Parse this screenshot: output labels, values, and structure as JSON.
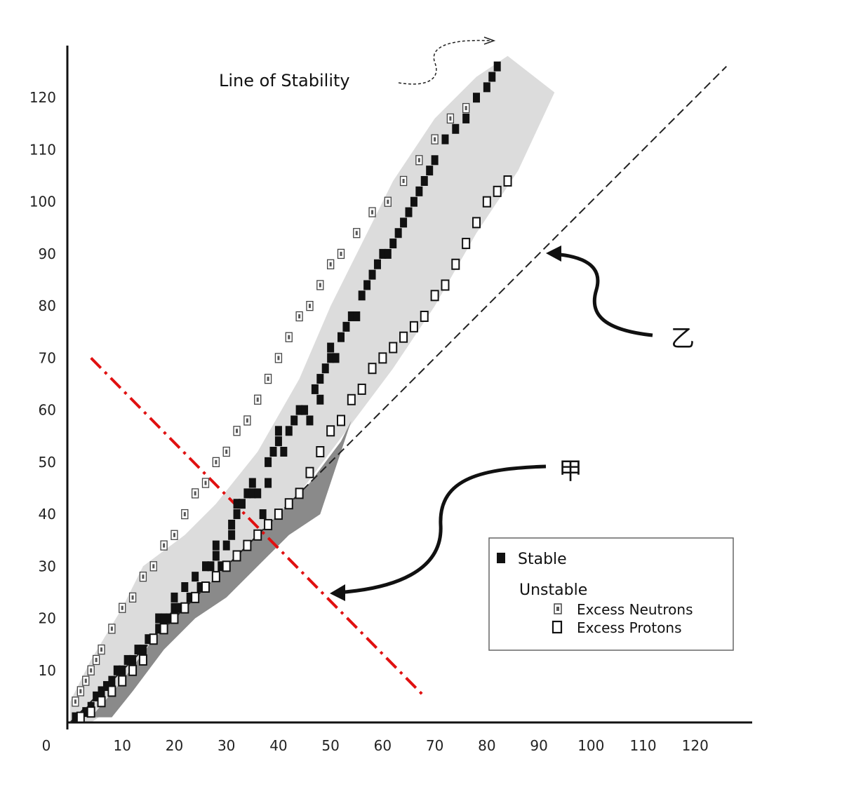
{
  "chart_data": {
    "type": "scatter",
    "title": "",
    "xlabel": "",
    "ylabel": "",
    "xlim": [
      0,
      130
    ],
    "ylim": [
      0,
      130
    ],
    "x_ticks": [
      0,
      10,
      20,
      30,
      40,
      50,
      60,
      70,
      80,
      90,
      100,
      110,
      120
    ],
    "y_ticks": [
      10,
      20,
      30,
      40,
      50,
      60,
      70,
      80,
      90,
      100,
      110,
      120
    ],
    "stability_label": "Line of Stability",
    "annotation_jia": "甲",
    "annotation_yi": "乙",
    "legend": {
      "stable": "Stable",
      "unstable": "Unstable",
      "excess_neutrons": "Excess Neutrons",
      "excess_protons": "Excess Protons"
    },
    "colors": {
      "light_band": "#dcdcdc",
      "dark_band": "#8a8a8a",
      "stable": "#111111",
      "red_line": "#e01010",
      "equal_line": "#222222"
    },
    "equal_line": [
      [
        0,
        0
      ],
      [
        126,
        126
      ]
    ],
    "red_line": [
      [
        4,
        70
      ],
      [
        68,
        5
      ]
    ],
    "series": [
      {
        "name": "Stable",
        "points": [
          [
            1,
            1
          ],
          [
            2,
            1
          ],
          [
            3,
            2
          ],
          [
            4,
            3
          ],
          [
            5,
            5
          ],
          [
            6,
            6
          ],
          [
            7,
            7
          ],
          [
            8,
            8
          ],
          [
            9,
            10
          ],
          [
            10,
            10
          ],
          [
            11,
            12
          ],
          [
            12,
            12
          ],
          [
            13,
            14
          ],
          [
            14,
            14
          ],
          [
            15,
            16
          ],
          [
            16,
            16
          ],
          [
            17,
            18
          ],
          [
            17,
            20
          ],
          [
            18,
            20
          ],
          [
            19,
            20
          ],
          [
            20,
            22
          ],
          [
            20,
            24
          ],
          [
            21,
            22
          ],
          [
            22,
            26
          ],
          [
            23,
            24
          ],
          [
            24,
            28
          ],
          [
            25,
            26
          ],
          [
            26,
            30
          ],
          [
            27,
            30
          ],
          [
            28,
            32
          ],
          [
            28,
            34
          ],
          [
            29,
            30
          ],
          [
            30,
            34
          ],
          [
            31,
            36
          ],
          [
            31,
            38
          ],
          [
            32,
            40
          ],
          [
            32,
            42
          ],
          [
            33,
            42
          ],
          [
            34,
            44
          ],
          [
            35,
            46
          ],
          [
            35,
            44
          ],
          [
            36,
            44
          ],
          [
            37,
            40
          ],
          [
            38,
            50
          ],
          [
            38,
            46
          ],
          [
            39,
            52
          ],
          [
            40,
            54
          ],
          [
            40,
            56
          ],
          [
            41,
            52
          ],
          [
            42,
            56
          ],
          [
            43,
            58
          ],
          [
            44,
            60
          ],
          [
            45,
            60
          ],
          [
            46,
            58
          ],
          [
            47,
            64
          ],
          [
            48,
            62
          ],
          [
            48,
            66
          ],
          [
            49,
            68
          ],
          [
            50,
            70
          ],
          [
            50,
            72
          ],
          [
            51,
            70
          ],
          [
            52,
            74
          ],
          [
            53,
            76
          ],
          [
            54,
            78
          ],
          [
            55,
            78
          ],
          [
            56,
            82
          ],
          [
            57,
            84
          ],
          [
            58,
            86
          ],
          [
            59,
            88
          ],
          [
            60,
            90
          ],
          [
            61,
            90
          ],
          [
            62,
            92
          ],
          [
            63,
            94
          ],
          [
            64,
            96
          ],
          [
            65,
            98
          ],
          [
            66,
            100
          ],
          [
            67,
            102
          ],
          [
            68,
            104
          ],
          [
            69,
            106
          ],
          [
            70,
            108
          ],
          [
            72,
            112
          ],
          [
            74,
            114
          ],
          [
            76,
            116
          ],
          [
            78,
            120
          ],
          [
            80,
            122
          ],
          [
            81,
            124
          ],
          [
            82,
            126
          ]
        ]
      },
      {
        "name": "Excess Neutrons",
        "points": [
          [
            1,
            4
          ],
          [
            2,
            6
          ],
          [
            3,
            8
          ],
          [
            4,
            10
          ],
          [
            5,
            12
          ],
          [
            6,
            14
          ],
          [
            8,
            18
          ],
          [
            10,
            22
          ],
          [
            12,
            24
          ],
          [
            14,
            28
          ],
          [
            16,
            30
          ],
          [
            18,
            34
          ],
          [
            20,
            36
          ],
          [
            22,
            40
          ],
          [
            24,
            44
          ],
          [
            26,
            46
          ],
          [
            28,
            50
          ],
          [
            30,
            52
          ],
          [
            32,
            56
          ],
          [
            34,
            58
          ],
          [
            36,
            62
          ],
          [
            38,
            66
          ],
          [
            40,
            70
          ],
          [
            42,
            74
          ],
          [
            44,
            78
          ],
          [
            46,
            80
          ],
          [
            48,
            84
          ],
          [
            50,
            88
          ],
          [
            52,
            90
          ],
          [
            55,
            94
          ],
          [
            58,
            98
          ],
          [
            61,
            100
          ],
          [
            64,
            104
          ],
          [
            67,
            108
          ],
          [
            70,
            112
          ],
          [
            73,
            116
          ],
          [
            76,
            118
          ]
        ]
      },
      {
        "name": "Excess Protons",
        "points": [
          [
            2,
            1
          ],
          [
            4,
            2
          ],
          [
            6,
            4
          ],
          [
            8,
            6
          ],
          [
            10,
            8
          ],
          [
            12,
            10
          ],
          [
            14,
            12
          ],
          [
            16,
            16
          ],
          [
            18,
            18
          ],
          [
            20,
            20
          ],
          [
            22,
            22
          ],
          [
            24,
            24
          ],
          [
            26,
            26
          ],
          [
            28,
            28
          ],
          [
            30,
            30
          ],
          [
            32,
            32
          ],
          [
            34,
            34
          ],
          [
            36,
            36
          ],
          [
            38,
            38
          ],
          [
            40,
            40
          ],
          [
            42,
            42
          ],
          [
            44,
            44
          ],
          [
            46,
            48
          ],
          [
            48,
            52
          ],
          [
            50,
            56
          ],
          [
            52,
            58
          ],
          [
            54,
            62
          ],
          [
            56,
            64
          ],
          [
            58,
            68
          ],
          [
            60,
            70
          ],
          [
            62,
            72
          ],
          [
            64,
            74
          ],
          [
            66,
            76
          ],
          [
            68,
            78
          ],
          [
            70,
            82
          ],
          [
            72,
            84
          ],
          [
            74,
            88
          ],
          [
            76,
            92
          ],
          [
            78,
            96
          ],
          [
            80,
            100
          ],
          [
            82,
            102
          ],
          [
            84,
            104
          ]
        ]
      }
    ]
  }
}
